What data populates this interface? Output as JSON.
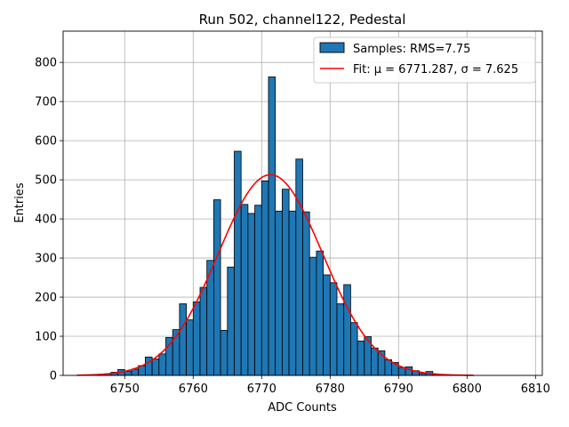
{
  "chart_data": {
    "type": "bar",
    "title": "Run 502, channel122, Pedestal",
    "xlabel": "ADC Counts",
    "ylabel": "Entries",
    "xlim": [
      6741,
      6811
    ],
    "ylim": [
      0,
      880
    ],
    "xticks": [
      6750,
      6760,
      6770,
      6780,
      6790,
      6800,
      6810
    ],
    "yticks": [
      0,
      100,
      200,
      300,
      400,
      500,
      600,
      700,
      800
    ],
    "grid": true,
    "legend_position": "top-right",
    "bar_color": "#1f77b4",
    "fit_color": "#ff0000",
    "bin_width": 1,
    "histogram": {
      "name": "Samples: RMS=7.75",
      "bin_left_edges": [
        6746,
        6747,
        6748,
        6749,
        6750,
        6751,
        6752,
        6753,
        6754,
        6755,
        6756,
        6757,
        6758,
        6759,
        6760,
        6761,
        6762,
        6763,
        6764,
        6765,
        6766,
        6767,
        6768,
        6769,
        6770,
        6771,
        6772,
        6773,
        6774,
        6775,
        6776,
        6777,
        6778,
        6779,
        6780,
        6781,
        6782,
        6783,
        6784,
        6785,
        6786,
        6787,
        6788,
        6789,
        6790,
        6791,
        6792,
        6793,
        6794,
        6795
      ],
      "counts": [
        2,
        4,
        8,
        15,
        10,
        16,
        25,
        47,
        42,
        55,
        97,
        117,
        183,
        142,
        188,
        225,
        294,
        449,
        115,
        277,
        573,
        437,
        414,
        435,
        497,
        763,
        420,
        476,
        420,
        553,
        418,
        302,
        318,
        257,
        237,
        183,
        232,
        135,
        88,
        99,
        70,
        63,
        40,
        33,
        20,
        22,
        12,
        5,
        10,
        3
      ]
    },
    "fit": {
      "name": "Fit: μ = 6771.287, σ = 7.625",
      "mu": 6771.287,
      "sigma": 7.625,
      "amplitude": 513,
      "x_range": [
        6743,
        6801
      ]
    }
  }
}
